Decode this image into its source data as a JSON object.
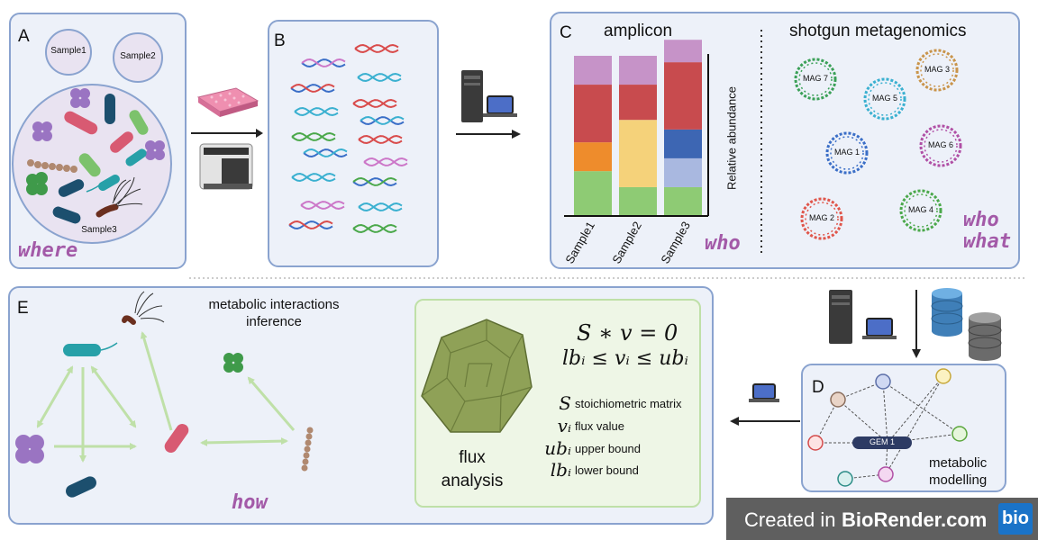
{
  "panels": {
    "a": {
      "label": "A",
      "samples": [
        "Sample1",
        "Sample2",
        "Sample3"
      ],
      "question": "where"
    },
    "b": {
      "label": "B"
    },
    "c": {
      "label": "C",
      "amplicon_title": "amplicon",
      "shotgun_title": "shotgun metagenomics",
      "ylabel": "Relative abundance",
      "q_who": "who",
      "q_who2": "who",
      "q_what": "what",
      "mags": [
        "MAG 7",
        "MAG 3",
        "MAG 5",
        "MAG 1",
        "MAG 6",
        "MAG 2",
        "MAG 4"
      ]
    },
    "d": {
      "label": "D",
      "gem": "GEM 1",
      "caption_line1": "metabolic",
      "caption_line2": "modelling"
    },
    "e": {
      "label": "E",
      "inference_line1": "metabolic interactions",
      "inference_line2": "inference",
      "question": "how",
      "flux_line1": "flux",
      "flux_line2": "analysis",
      "eq1": "S ∗ v = 0",
      "eq2": "lbᵢ ≤ vᵢ ≤ ubᵢ",
      "legend": [
        {
          "symbol": "S",
          "text": "stoichiometric matrix"
        },
        {
          "symbol": "vᵢ",
          "text": "flux value"
        },
        {
          "symbol": "ubᵢ",
          "text": "upper bound"
        },
        {
          "symbol": "lbᵢ",
          "text": "lower bound"
        }
      ]
    }
  },
  "badge": {
    "prefix": "Created in ",
    "brand": "BioRender.com",
    "logo": "bio"
  },
  "colors": {
    "panel_fill": "#edf1f9",
    "panel_border": "#8aa3cf",
    "question": "#a35aa8",
    "flux_box": "#eef6e6",
    "arrow_green": "#bfe0a8"
  },
  "chart_data": {
    "type": "bar",
    "stacked": true,
    "normalized": true,
    "categories": [
      "Sample1",
      "Sample2",
      "Sample3"
    ],
    "ylabel": "Relative abundance",
    "series": [
      {
        "color": "#8ecb74",
        "values": [
          0.28,
          0.18,
          0.18
        ]
      },
      {
        "color": "#ee8c2c",
        "values": [
          0.18,
          0,
          0
        ]
      },
      {
        "color": "#f5d27a",
        "values": [
          0,
          0.42,
          0
        ]
      },
      {
        "color": "#a9b8e0",
        "values": [
          0,
          0,
          0.18
        ]
      },
      {
        "color": "#3d66b3",
        "values": [
          0,
          0,
          0.18
        ]
      },
      {
        "color": "#c84b4e",
        "values": [
          0.36,
          0.22,
          0.42
        ]
      },
      {
        "color": "#c693c8",
        "values": [
          0.18,
          0.18,
          0.14
        ]
      }
    ]
  }
}
